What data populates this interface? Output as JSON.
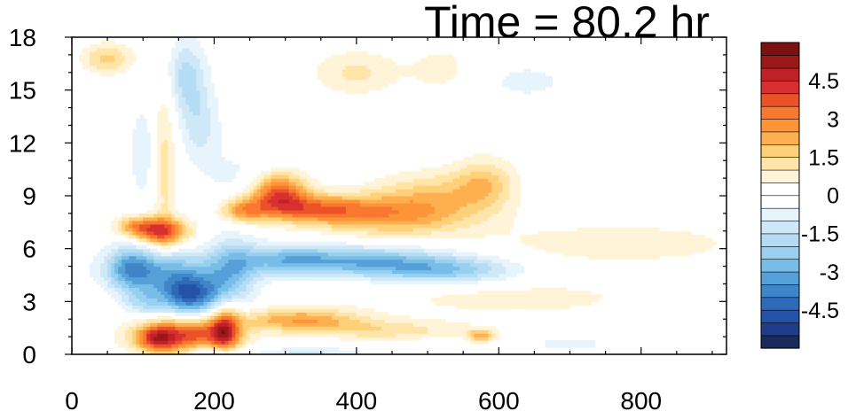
{
  "chart_data": {
    "type": "heatmap",
    "title": "Time = 80.2 hr",
    "xlabel": "",
    "ylabel": "",
    "xlim": [
      0,
      920
    ],
    "ylim": [
      0,
      18
    ],
    "x_ticks": [
      "0",
      "200",
      "400",
      "600",
      "800"
    ],
    "x_tick_values": [
      0,
      200,
      400,
      600,
      800
    ],
    "y_ticks": [
      "0",
      "3",
      "6",
      "9",
      "12",
      "15",
      "18"
    ],
    "y_tick_values": [
      0,
      3,
      6,
      9,
      12,
      15,
      18
    ],
    "grid": false,
    "colorbar": {
      "placement": "right",
      "levels": [
        -5.5,
        -5,
        -4.5,
        -4,
        -3.5,
        -3,
        -2.5,
        -2,
        -1.5,
        -1,
        -0.5,
        0,
        0.5,
        1,
        1.5,
        2,
        2.5,
        3,
        3.5,
        4,
        4.5,
        5,
        5.5
      ],
      "colors": [
        "#1a2a5a",
        "#1f3d8a",
        "#2452a8",
        "#2f6ab8",
        "#3f85c8",
        "#55a0d8",
        "#78bde8",
        "#98d0f0",
        "#b4dcf4",
        "#cfe8f8",
        "#e8f4fc",
        "#ffffff",
        "#ffffff",
        "#fff4d8",
        "#ffe5a8",
        "#ffd07a",
        "#feb050",
        "#fd9438",
        "#f87830",
        "#eb5228",
        "#d83030",
        "#c02028",
        "#9a1818",
        "#7a1010"
      ],
      "labels": [
        "4.5",
        "3",
        "1.5",
        "0",
        "-1.5",
        "-3",
        "-4.5"
      ],
      "label_values": [
        4.5,
        3,
        1.5,
        0,
        -1.5,
        -3,
        -4.5
      ]
    },
    "features": [
      {
        "x": 160,
        "y": 1.1,
        "sx": 50,
        "sy": 0.7,
        "v": 3.9
      },
      {
        "x": 215,
        "y": 1.4,
        "sx": 14,
        "sy": 1.0,
        "v": 3.4
      },
      {
        "x": 120,
        "y": 0.9,
        "sx": 18,
        "sy": 0.5,
        "v": 2.5
      },
      {
        "x": 320,
        "y": 2.0,
        "sx": 60,
        "sy": 0.45,
        "v": 2.4
      },
      {
        "x": 440,
        "y": 1.4,
        "sx": 80,
        "sy": 0.4,
        "v": 1.3
      },
      {
        "x": 575,
        "y": 1.1,
        "sx": 14,
        "sy": 0.25,
        "v": 2.2
      },
      {
        "x": 200,
        "y": -0.1,
        "sx": 25,
        "sy": 0.5,
        "v": -2.0
      },
      {
        "x": 330,
        "y": -0.1,
        "sx": 60,
        "sy": 0.35,
        "v": -1.3
      },
      {
        "x": 165,
        "y": 3.4,
        "sx": 32,
        "sy": 0.8,
        "v": -4.3
      },
      {
        "x": 120,
        "y": 4.8,
        "sx": 50,
        "sy": 0.8,
        "v": -2.8
      },
      {
        "x": 225,
        "y": 4.8,
        "sx": 26,
        "sy": 1.3,
        "v": -2.3
      },
      {
        "x": 300,
        "y": 5.4,
        "sx": 45,
        "sy": 0.6,
        "v": -2.0
      },
      {
        "x": 410,
        "y": 5.3,
        "sx": 80,
        "sy": 0.6,
        "v": -2.7
      },
      {
        "x": 530,
        "y": 4.8,
        "sx": 70,
        "sy": 0.55,
        "v": -2.2
      },
      {
        "x": 80,
        "y": 5.0,
        "sx": 20,
        "sy": 1.0,
        "v": -1.8
      },
      {
        "x": 100,
        "y": 3.0,
        "sx": 20,
        "sy": 0.6,
        "v": -1.3
      },
      {
        "x": 125,
        "y": 7.0,
        "sx": 28,
        "sy": 0.55,
        "v": 3.6
      },
      {
        "x": 90,
        "y": 7.3,
        "sx": 20,
        "sy": 0.4,
        "v": 2.0
      },
      {
        "x": 290,
        "y": 9.2,
        "sx": 28,
        "sy": 0.8,
        "v": 3.7
      },
      {
        "x": 240,
        "y": 8.2,
        "sx": 22,
        "sy": 0.5,
        "v": 2.4
      },
      {
        "x": 340,
        "y": 8.3,
        "sx": 55,
        "sy": 0.55,
        "v": 2.6
      },
      {
        "x": 450,
        "y": 7.9,
        "sx": 80,
        "sy": 0.8,
        "v": 2.4
      },
      {
        "x": 510,
        "y": 9.2,
        "sx": 60,
        "sy": 0.9,
        "v": 1.4
      },
      {
        "x": 580,
        "y": 9.8,
        "sx": 30,
        "sy": 1.0,
        "v": 1.5
      },
      {
        "x": 770,
        "y": 6.3,
        "sx": 140,
        "sy": 0.9,
        "v": 0.8
      },
      {
        "x": 620,
        "y": 3.2,
        "sx": 150,
        "sy": 0.8,
        "v": 0.7
      },
      {
        "x": 400,
        "y": 16.0,
        "sx": 45,
        "sy": 0.9,
        "v": 1.1
      },
      {
        "x": 520,
        "y": 16.2,
        "sx": 30,
        "sy": 0.9,
        "v": 0.8
      },
      {
        "x": 50,
        "y": 16.8,
        "sx": 25,
        "sy": 0.6,
        "v": 1.7
      },
      {
        "x": 130,
        "y": 11.0,
        "sx": 12,
        "sy": 3.5,
        "v": 1.3
      },
      {
        "x": 160,
        "y": 15.8,
        "sx": 20,
        "sy": 1.5,
        "v": -1.7
      },
      {
        "x": 180,
        "y": 13.0,
        "sx": 20,
        "sy": 1.5,
        "v": -1.2
      },
      {
        "x": 100,
        "y": 11.5,
        "sx": 15,
        "sy": 2.0,
        "v": -0.9
      },
      {
        "x": 640,
        "y": 15.5,
        "sx": 60,
        "sy": 1.0,
        "v": -0.6
      },
      {
        "x": 240,
        "y": 10.0,
        "sx": 40,
        "sy": 1.2,
        "v": -0.7
      },
      {
        "x": 700,
        "y": 0.6,
        "sx": 40,
        "sy": 0.3,
        "v": -0.8
      }
    ]
  }
}
